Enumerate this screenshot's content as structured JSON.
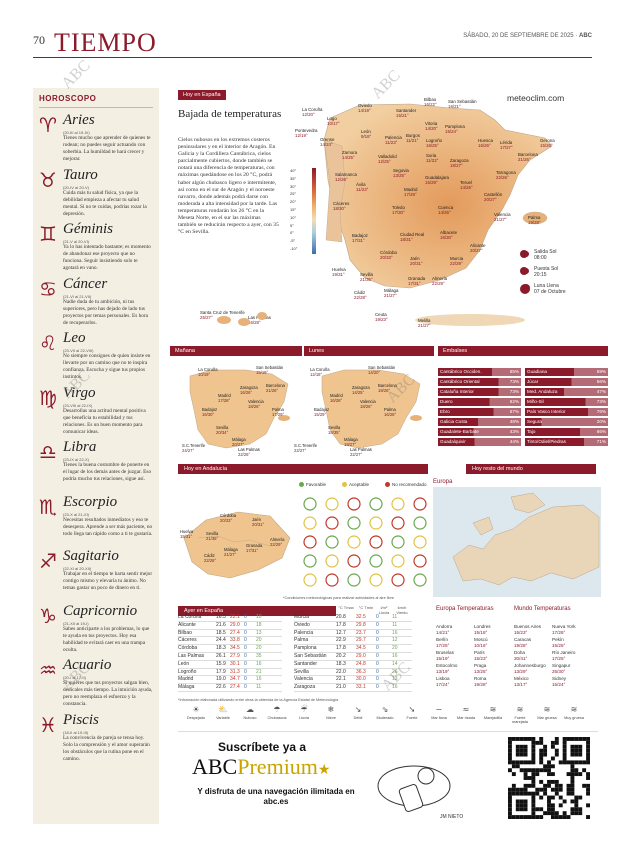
{
  "header": {
    "page_number": "70",
    "title": "TIEMPO",
    "date": "SÁBADO, 20 DE SEPTIEMBRE DE 2025",
    "brand": "ABC"
  },
  "horoscope": {
    "title": "HOROSCOPO",
    "signs": [
      {
        "glyph": "♈",
        "name": "Aries",
        "dates": "(20-III al 19-IV)",
        "text": "Tienes mucho que aprender de quienes te rodean; no puedes seguir actuando con soberbia. La humildad te hará crecer y mejorar."
      },
      {
        "glyph": "♉",
        "name": "Tauro",
        "dates": "(20-IV al 20-V)",
        "text": "Cuida más tu salud física, ya que la debilidad empieza a afectar tu salud mental. Si no te cuidas, podrías rozar la depresión."
      },
      {
        "glyph": "♊",
        "name": "Géminis",
        "dates": "(21-V al 20-VI)",
        "text": "Ya lo has intentado bastante; es momento de abandonar ese proyecto que no funciona. Seguir insistiendo solo te agotará en vano."
      },
      {
        "glyph": "♋",
        "name": "Cáncer",
        "dates": "(21-VI al 21-VII)",
        "text": "Nadie duda de tu ambición, ni tus superiores, pero has dejado de lado tus proyectos por temas personales. Es hora de recuperarlos."
      },
      {
        "glyph": "♌",
        "name": "Leo",
        "dates": "(23-VII al 22-VIII)",
        "text": "No siempre consigues de quien insiste en llevarte por un camino que no te inspira confianza. Escucha y sigue tus propios instintos."
      },
      {
        "glyph": "♍",
        "name": "Virgo",
        "dates": "(23-VIII al 22-IX)",
        "text": "Desarrollas una actitud mental positiva que beneficia tu estabilidad y tus relaciones. Es un buen momento para comunicar ideas."
      },
      {
        "glyph": "♎",
        "name": "Libra",
        "dates": "(23-IX al 22-X)",
        "text": "Tienes la buena costumbre de ponerte en el lugar de los demás antes de juzgar. Eso podría mucho tus relaciones, sigue así."
      },
      {
        "glyph": "♏",
        "name": "Escorpio",
        "dates": "(23-X al 21-XI)",
        "text": "Necesitas resultados inmediatos y eso te desespera. Aprende a ser más paciente, no todo llega tan rápido como a ti te gustaría."
      },
      {
        "glyph": "♐",
        "name": "Sagitario",
        "dates": "(22-XI al 20-XII)",
        "text": "Trabajar en el tiempo te harta sentir mejor contigo mismo y elevaría tu ánimo. No temas gastar un poco de dinero en ti."
      },
      {
        "glyph": "♑",
        "name": "Capricornio",
        "dates": "(21-XII al 19-I)",
        "text": "Sabes anticiparte a los problemas, lo que te ayuda en tus proyectos. Hoy esa habilidad te evitará caer en una trampa oculta."
      },
      {
        "glyph": "♒",
        "name": "Acuario",
        "dates": "(20-I al 17-II)",
        "text": "Si quieres que tus proyectos salgan bien, dedícales más tiempo. La intuición ayuda, pero no reemplaza el esfuerzo y la constancia."
      },
      {
        "glyph": "♓",
        "name": "Piscis",
        "dates": "(18-II al 19-III)",
        "text": "La convivencia de pareja se tensa hoy. Solo la comprensión y el amor superarán los obstáculos que la rutina pone en el camino."
      }
    ]
  },
  "main_forecast": {
    "tag": "Hoy en España",
    "headline": "Bajada de temperaturas",
    "lede": "Cielos nubosos en los extremos costeros peninsulares y en el interior de Aragón. En Galicia y la Cordillera Cantábrica, cielos parcialmente cubiertos, donde también se notará una diferencia de temperaturas, con máximas quedándose en los 20 °C, podrá haber algún chubasco ligero e intermitente, así como en el sur de Aragón y el noroeste navarro, donde además podrá darse con moderada a alta intensidad por la tarde. Las temperaturas rondarán los 26 °C en la Meseta Norte, en el sur las máximas también se reducirán respecto a ayer, con 35 °C en Sevilla.",
    "site": "meteoclim.com",
    "temp_scale": [
      "40°",
      "35°",
      "30°",
      "25°",
      "20°",
      "15°",
      "10°",
      "5°",
      "0°",
      "-5°",
      "-10°"
    ],
    "cities": [
      {
        "name": "La Coruña",
        "t": "12/20°"
      },
      {
        "name": "Oviedo",
        "t": "14/19°"
      },
      {
        "name": "Santander",
        "t": "15/21°"
      },
      {
        "name": "Bilbao",
        "t": "16/22°"
      },
      {
        "name": "San Sebastián",
        "t": "16/21°"
      },
      {
        "name": "Lugo",
        "t": "10/17°"
      },
      {
        "name": "Pontevedra",
        "t": "12/19°"
      },
      {
        "name": "Orense",
        "t": "14/24°"
      },
      {
        "name": "León",
        "t": "9/18°"
      },
      {
        "name": "Palencia",
        "t": "11/23°"
      },
      {
        "name": "Burgos",
        "t": "11/21°"
      },
      {
        "name": "Vitoria",
        "t": "14/20°"
      },
      {
        "name": "Pamplona",
        "t": "15/24°"
      },
      {
        "name": "Logroño",
        "t": "16/25°"
      },
      {
        "name": "Huesca",
        "t": "16/26°"
      },
      {
        "name": "Lérida",
        "t": "17/27°"
      },
      {
        "name": "Gerona",
        "t": "15/26°"
      },
      {
        "name": "Barcelona",
        "t": "21/26°"
      },
      {
        "name": "Zamora",
        "t": "14/25°"
      },
      {
        "name": "Valladolid",
        "t": "12/25°"
      },
      {
        "name": "Soria",
        "t": "11/22°"
      },
      {
        "name": "Zaragoza",
        "t": "18/27°"
      },
      {
        "name": "Tarragona",
        "t": "22/26°"
      },
      {
        "name": "Salamanca",
        "t": "12/26°"
      },
      {
        "name": "Segovia",
        "t": "13/25°"
      },
      {
        "name": "Guadalajara",
        "t": "15/29°"
      },
      {
        "name": "Teruel",
        "t": "14/26°"
      },
      {
        "name": "Castellón",
        "t": "20/27°"
      },
      {
        "name": "Ávila",
        "t": "11/23°"
      },
      {
        "name": "Madrid",
        "t": "17/29°"
      },
      {
        "name": "Cuenca",
        "t": "14/26°"
      },
      {
        "name": "Cáceres",
        "t": "18/30°"
      },
      {
        "name": "Toledo",
        "t": "17/30°"
      },
      {
        "name": "Valencia",
        "t": "21/27°"
      },
      {
        "name": "Palma",
        "t": "19/28°"
      },
      {
        "name": "Badajoz",
        "t": "17/31°"
      },
      {
        "name": "Ciudad Real",
        "t": "18/31°"
      },
      {
        "name": "Albacete",
        "t": "16/30°"
      },
      {
        "name": "Alicante",
        "t": "20/27°"
      },
      {
        "name": "Córdoba",
        "t": "20/33°"
      },
      {
        "name": "Jaén",
        "t": "20/31°"
      },
      {
        "name": "Murcia",
        "t": "22/29°"
      },
      {
        "name": "Huelva",
        "t": "19/31°"
      },
      {
        "name": "Sevilla",
        "t": "21/35°"
      },
      {
        "name": "Granada",
        "t": "17/31°"
      },
      {
        "name": "Almería",
        "t": "22/29°"
      },
      {
        "name": "Cádiz",
        "t": "22/28°"
      },
      {
        "name": "Málaga",
        "t": "21/27°"
      },
      {
        "name": "Ceuta",
        "t": "19/23°"
      },
      {
        "name": "Melilla",
        "t": "21/27°"
      },
      {
        "name": "Santa Cruz de Tenerife",
        "t": "25/27°"
      },
      {
        "name": "Las Palmas",
        "t": "26/28°"
      }
    ],
    "sun": [
      {
        "label": "Salida Sol",
        "value": "08:00"
      },
      {
        "label": "Puesta Sol",
        "value": "20:15"
      },
      {
        "label": "Luna Llena",
        "value": "07 de Octubre"
      }
    ]
  },
  "manana": {
    "tag": "Mañana",
    "cities": [
      {
        "name": "La Coruña",
        "t": "10/19°"
      },
      {
        "name": "San Sebastián",
        "t": "15/19°"
      },
      {
        "name": "Zaragoza",
        "t": "16/26°"
      },
      {
        "name": "Barcelona",
        "t": "21/26°"
      },
      {
        "name": "Madrid",
        "t": "17/28°"
      },
      {
        "name": "Valencia",
        "t": "18/26°"
      },
      {
        "name": "Palma",
        "t": "17/29°"
      },
      {
        "name": "Badajoz",
        "t": "16/30°"
      },
      {
        "name": "Sevilla",
        "t": "20/34°"
      },
      {
        "name": "Málaga",
        "t": "20/27°"
      },
      {
        "name": "S.C.Tenerife",
        "t": "24/27°"
      },
      {
        "name": "Las Palmas",
        "t": "22/26°"
      }
    ]
  },
  "lunes": {
    "tag": "Lunes",
    "cities": [
      {
        "name": "La Coruña",
        "t": "12/18°"
      },
      {
        "name": "San Sebastián",
        "t": "14/20°"
      },
      {
        "name": "Zaragoza",
        "t": "14/25°"
      },
      {
        "name": "Barcelona",
        "t": "19/26°"
      },
      {
        "name": "Madrid",
        "t": "16/28°"
      },
      {
        "name": "Valencia",
        "t": "18/26°"
      },
      {
        "name": "Palma",
        "t": "16/28°"
      },
      {
        "name": "Badajoz",
        "t": "15/29°"
      },
      {
        "name": "Sevilla",
        "t": "18/35°"
      },
      {
        "name": "Málaga",
        "t": "19/27°"
      },
      {
        "name": "S.C.Tenerife",
        "t": "22/27°"
      },
      {
        "name": "Las Palmas",
        "t": "22/27°"
      }
    ]
  },
  "embalses": {
    "tag": "Embalses",
    "items": [
      {
        "name": "Cantábrico Occiden.",
        "pct": "65%"
      },
      {
        "name": "Cantábrico Oriental",
        "pct": "73%"
      },
      {
        "name": "Cataluña Interior",
        "pct": "73%"
      },
      {
        "name": "Duero",
        "pct": "62%"
      },
      {
        "name": "Ebro",
        "pct": "67%"
      },
      {
        "name": "Galicia Costa",
        "pct": "48%"
      },
      {
        "name": "Guadalete-Barbate",
        "pct": "43%"
      },
      {
        "name": "Guadalquivir",
        "pct": "44%"
      },
      {
        "name": "Guadiana",
        "pct": "59%"
      },
      {
        "name": "Júcar",
        "pct": "56%"
      },
      {
        "name": "Med. Andaluza",
        "pct": "47%"
      },
      {
        "name": "Miño-Sil",
        "pct": "73%"
      },
      {
        "name": "País Vasco Interior",
        "pct": "76%"
      },
      {
        "name": "Segura",
        "pct": "20%"
      },
      {
        "name": "Tajo",
        "pct": "66%"
      },
      {
        "name": "Tinto/Odiel/Piedras",
        "pct": "71%"
      }
    ]
  },
  "andalucia": {
    "tag": "Hoy en Andalucía",
    "legend": [
      {
        "label": "Favorable",
        "color": "#6aa84f"
      },
      {
        "label": "Aceptable",
        "color": "#e0c341"
      },
      {
        "label": "No recomendado",
        "color": "#c0392b"
      }
    ],
    "cities": [
      {
        "name": "Huelva",
        "t": "19/31°"
      },
      {
        "name": "Sevilla",
        "t": "21/35°"
      },
      {
        "name": "Córdoba",
        "t": "20/33°"
      },
      {
        "name": "Jaén",
        "t": "20/31°"
      },
      {
        "name": "Granada",
        "t": "17/31°"
      },
      {
        "name": "Málaga",
        "t": "21/27°"
      },
      {
        "name": "Almería",
        "t": "22/29°"
      },
      {
        "name": "Cádiz",
        "t": "22/28°"
      }
    ],
    "note": "*Condiciones meteorológicas para realizar actividades al aire libre"
  },
  "world": {
    "tag": "Hoy resto del mundo",
    "europa_label": "Europa"
  },
  "ayer": {
    "tag": "Ayer en España",
    "headers": [
      "°C Tmax",
      "°C Tmin",
      "l/m² Lluvia",
      "km/h Viento"
    ],
    "left": [
      {
        "city": "La Coruña",
        "v": [
          "16.5",
          "22.1",
          "0",
          "10"
        ]
      },
      {
        "city": "Alicante",
        "v": [
          "21.6",
          "29.0",
          "0",
          "18"
        ]
      },
      {
        "city": "Bilbao",
        "v": [
          "18.5",
          "27.4",
          "0",
          "13"
        ]
      },
      {
        "city": "Cáceres",
        "v": [
          "24.4",
          "33.8",
          "0",
          "20"
        ]
      },
      {
        "city": "Córdoba",
        "v": [
          "18.3",
          "34.5",
          "0",
          "20"
        ]
      },
      {
        "city": "Las Palmas",
        "v": [
          "26.1",
          "27.9",
          "0",
          "35"
        ]
      },
      {
        "city": "León",
        "v": [
          "15.9",
          "30.1",
          "0",
          "16"
        ]
      },
      {
        "city": "Logroño",
        "v": [
          "17.9",
          "31.3",
          "0",
          "21"
        ]
      },
      {
        "city": "Madrid",
        "v": [
          "19.0",
          "34.7",
          "0",
          "16"
        ]
      },
      {
        "city": "Málaga",
        "v": [
          "22.6",
          "27.4",
          "0",
          "11"
        ]
      }
    ],
    "right": [
      {
        "city": "Murcia",
        "v": [
          "20.8",
          "32.5",
          "0",
          "11"
        ]
      },
      {
        "city": "Oviedo",
        "v": [
          "17.8",
          "29.8",
          "0",
          "11"
        ]
      },
      {
        "city": "Palencia",
        "v": [
          "12.7",
          "23.7",
          "0",
          "16"
        ]
      },
      {
        "city": "Palma",
        "v": [
          "22.9",
          "29.7",
          "0",
          "12"
        ]
      },
      {
        "city": "Pamplona",
        "v": [
          "17.8",
          "34.5",
          "0",
          "20"
        ]
      },
      {
        "city": "San Sebastián",
        "v": [
          "20.2",
          "29.0",
          "0",
          "16"
        ]
      },
      {
        "city": "Santander",
        "v": [
          "18.3",
          "24.8",
          "0",
          "14"
        ]
      },
      {
        "city": "Sevilla",
        "v": [
          "22.0",
          "36.3",
          "0",
          "26"
        ]
      },
      {
        "city": "Valencia",
        "v": [
          "22.1",
          "30.0",
          "0",
          "13"
        ]
      },
      {
        "city": "Zaragoza",
        "v": [
          "21.0",
          "33.1",
          "0",
          "16"
        ]
      }
    ],
    "source": "*Información elaborada utilizando entre otras la obtenida de la Agencia Estatal de Meteorología"
  },
  "europa_temps": {
    "title": "Europa Temperaturas",
    "cities": [
      {
        "name": "Andorra",
        "t": "14/21°"
      },
      {
        "name": "Londres",
        "t": "15/18°"
      },
      {
        "name": "Berlín",
        "t": "17/25°"
      },
      {
        "name": "Moscú",
        "t": "10/16°"
      },
      {
        "name": "Bruselas",
        "t": "15/19°"
      },
      {
        "name": "París",
        "t": "15/23°"
      },
      {
        "name": "Estocolmo",
        "t": "13/19°"
      },
      {
        "name": "Praga",
        "t": "13/25°"
      },
      {
        "name": "Lisboa",
        "t": "17/24°"
      },
      {
        "name": "Roma",
        "t": "19/28°"
      }
    ]
  },
  "mundo_temps": {
    "title": "Mundo Temperaturas",
    "cities": [
      {
        "name": "Buenos Aires",
        "t": "15/23°"
      },
      {
        "name": "Nueva York",
        "t": "17/26°"
      },
      {
        "name": "Caracas",
        "t": "19/28°"
      },
      {
        "name": "Pekín",
        "t": "15/25°"
      },
      {
        "name": "Doha",
        "t": "30/41°"
      },
      {
        "name": "Río Janeiro",
        "t": "17/25°"
      },
      {
        "name": "Johannesburgo",
        "t": "13/29°"
      },
      {
        "name": "Singapur",
        "t": "25/30°"
      },
      {
        "name": "México",
        "t": "13/17°"
      },
      {
        "name": "Sidney",
        "t": "15/24°"
      }
    ]
  },
  "weather_legend": [
    {
      "icon": "sun-icon",
      "glyph": "☀",
      "label": "Despejado"
    },
    {
      "icon": "partly-cloudy-icon",
      "glyph": "⛅",
      "label": "Variable"
    },
    {
      "icon": "cloud-icon",
      "glyph": "☁",
      "label": "Nuboso"
    },
    {
      "icon": "shower-icon",
      "glyph": "☂",
      "label": "Chubascos"
    },
    {
      "icon": "rain-icon",
      "glyph": "☔",
      "label": "Lluvia"
    },
    {
      "icon": "snow-icon",
      "glyph": "❄",
      "label": "Nieve"
    },
    {
      "icon": "weak-wind-icon",
      "glyph": "↘",
      "label": "Débil"
    },
    {
      "icon": "moderate-wind-icon",
      "glyph": "⇘",
      "label": "Moderado"
    },
    {
      "icon": "strong-wind-icon",
      "glyph": "➘",
      "label": "Fuerte"
    },
    {
      "icon": "calm-sea-icon",
      "glyph": "∼",
      "label": "Mar llana"
    },
    {
      "icon": "choppy-sea-icon",
      "glyph": "≈",
      "label": "Mar rizada"
    },
    {
      "icon": "rough-sea-icon",
      "glyph": "≋",
      "label": "Marejadilla"
    },
    {
      "icon": "heavy-sea-icon",
      "glyph": "≋",
      "label": "Fuerte marejada"
    },
    {
      "icon": "gruesa-sea-icon",
      "glyph": "≋",
      "label": "Mar gruesa"
    },
    {
      "icon": "muy-gruesa-sea-icon",
      "glyph": "≋",
      "label": "Muy gruesa"
    }
  ],
  "ad": {
    "line1": "Suscríbete ya a",
    "brand_abc": "ABC",
    "brand_premium": "Premium",
    "line3": "Y disfruta de una navegación ilimitada en abc.es",
    "signature": "JM NIETO"
  },
  "watermark": "ABC"
}
